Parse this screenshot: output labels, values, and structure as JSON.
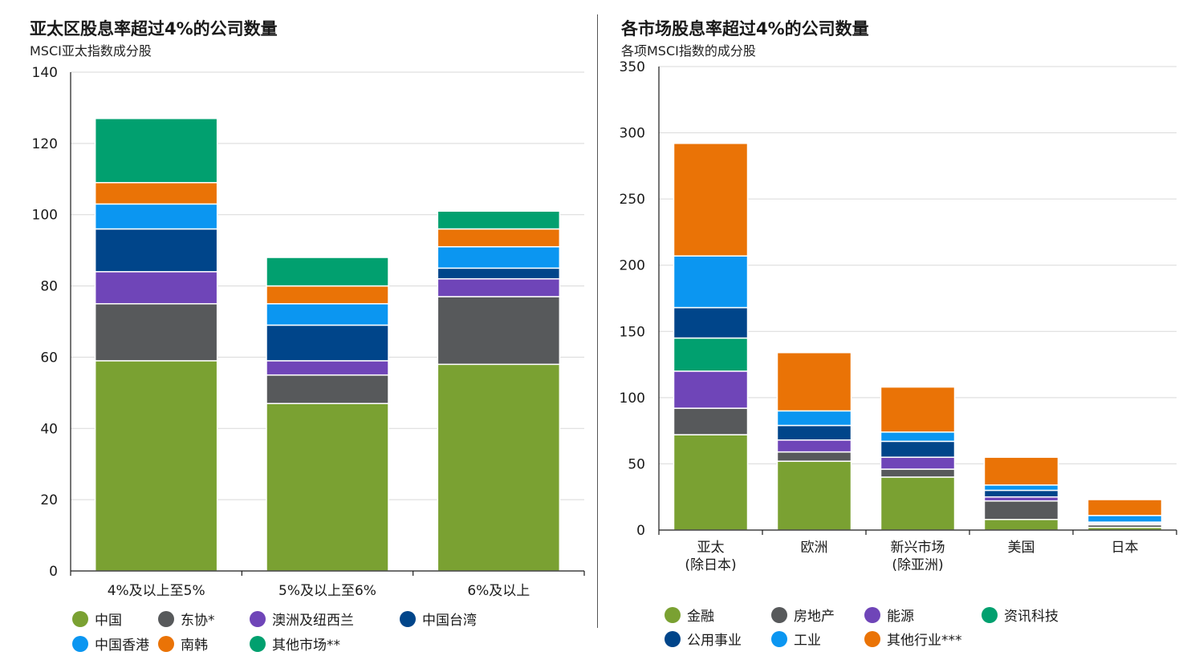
{
  "colors": {
    "china": "#7aa132",
    "asean": "#57595b",
    "aus_nz": "#6f45b8",
    "taiwan": "#00458a",
    "hk": "#0b96f1",
    "korea": "#ea7306",
    "other": "#01a06f",
    "finance": "#7aa132",
    "realestate": "#57595b",
    "energy": "#6f45b8",
    "infotech": "#01a06f",
    "utilities": "#00458a",
    "industrials": "#0b96f1",
    "other_ind": "#ea7306"
  },
  "left": {
    "title": "亚太区股息率超过4%的公司数量",
    "subtitle": "MSCI亚太指数成分股",
    "legend": [
      {
        "label": "中国",
        "color_key": "china"
      },
      {
        "label": "东协*",
        "color_key": "asean"
      },
      {
        "label": "澳洲及纽西兰",
        "color_key": "aus_nz"
      },
      {
        "label": "中国台湾",
        "color_key": "taiwan"
      },
      {
        "label": "中国香港",
        "color_key": "hk"
      },
      {
        "label": "南韩",
        "color_key": "korea"
      },
      {
        "label": "其他市场**",
        "color_key": "other"
      }
    ]
  },
  "right": {
    "title": "各市场股息率超过4%的公司数量",
    "subtitle": "各项MSCI指数的成分股",
    "legend": [
      {
        "label": "金融",
        "color_key": "finance"
      },
      {
        "label": "房地产",
        "color_key": "realestate"
      },
      {
        "label": "能源",
        "color_key": "energy"
      },
      {
        "label": "资讯科技",
        "color_key": "infotech"
      },
      {
        "label": "公用事业",
        "color_key": "utilities"
      },
      {
        "label": "工业",
        "color_key": "industrials"
      },
      {
        "label": "其他行业***",
        "color_key": "other_ind"
      }
    ]
  },
  "chart_data": [
    {
      "type": "bar",
      "stacked": true,
      "title": "亚太区股息率超过4%的公司数量",
      "subtitle": "MSCI亚太指数成分股",
      "categories": [
        "4%及以上至5%",
        "5%及以上至6%",
        "6%及以上"
      ],
      "ylim": [
        0,
        140
      ],
      "yticks": [
        0,
        20,
        40,
        60,
        80,
        100,
        120,
        140
      ],
      "grid": true,
      "legend_position": "bottom",
      "series": [
        {
          "name": "中国",
          "color_key": "china",
          "values": [
            59,
            47,
            58
          ]
        },
        {
          "name": "东协*",
          "color_key": "asean",
          "values": [
            16,
            8,
            19
          ]
        },
        {
          "name": "澳洲及纽西兰",
          "color_key": "aus_nz",
          "values": [
            9,
            4,
            5
          ]
        },
        {
          "name": "中国台湾",
          "color_key": "taiwan",
          "values": [
            12,
            10,
            3
          ]
        },
        {
          "name": "中国香港",
          "color_key": "hk",
          "values": [
            7,
            6,
            6
          ]
        },
        {
          "name": "南韩",
          "color_key": "korea",
          "values": [
            6,
            5,
            5
          ]
        },
        {
          "name": "其他市场**",
          "color_key": "other",
          "values": [
            18,
            8,
            5
          ]
        }
      ]
    },
    {
      "type": "bar",
      "stacked": true,
      "title": "各市场股息率超过4%的公司数量",
      "subtitle": "各项MSCI指数的成分股",
      "categories": [
        "亚太\n(除日本)",
        "欧洲",
        "新兴市场\n(除亚洲)",
        "美国",
        "日本"
      ],
      "ylim": [
        0,
        350
      ],
      "yticks": [
        0,
        50,
        100,
        150,
        200,
        250,
        300,
        350
      ],
      "grid": true,
      "legend_position": "bottom",
      "series": [
        {
          "name": "金融",
          "color_key": "finance",
          "values": [
            72,
            52,
            40,
            8,
            2
          ]
        },
        {
          "name": "房地产",
          "color_key": "realestate",
          "values": [
            20,
            7,
            6,
            14,
            2
          ]
        },
        {
          "name": "能源",
          "color_key": "energy",
          "values": [
            28,
            9,
            9,
            3,
            1
          ]
        },
        {
          "name": "资讯科技",
          "color_key": "infotech",
          "values": [
            25,
            0,
            0,
            0,
            0
          ]
        },
        {
          "name": "公用事业",
          "color_key": "utilities",
          "values": [
            23,
            11,
            12,
            5,
            1
          ]
        },
        {
          "name": "工业",
          "color_key": "industrials",
          "values": [
            39,
            11,
            7,
            4,
            5
          ]
        },
        {
          "name": "其他行业***",
          "color_key": "other_ind",
          "values": [
            85,
            44,
            34,
            21,
            12
          ]
        }
      ]
    }
  ]
}
